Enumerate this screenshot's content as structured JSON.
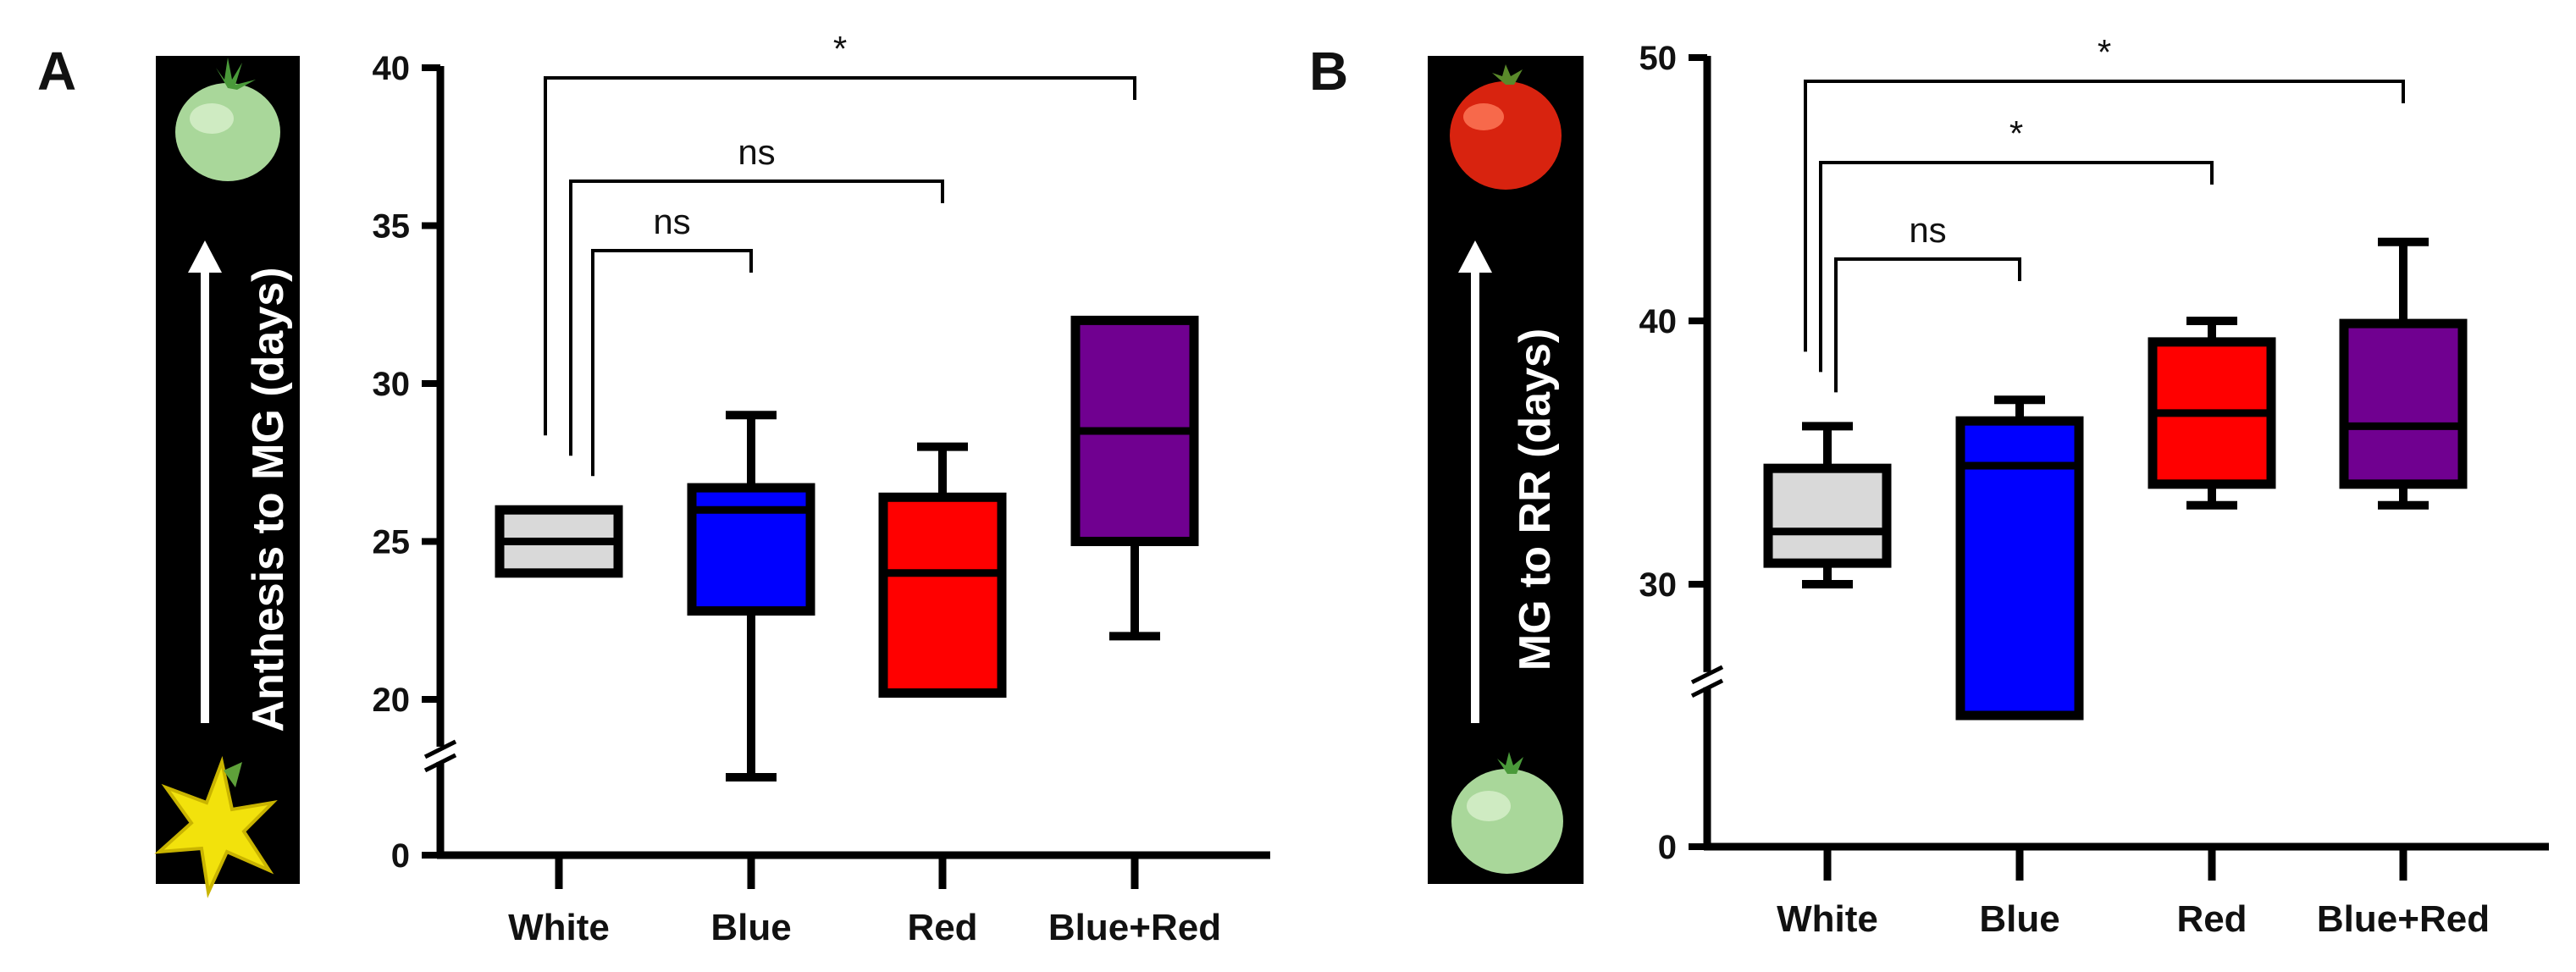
{
  "chart_data": [
    {
      "panel": "A",
      "type": "box",
      "ylabel": "Anthesis to MG (days)",
      "categories": [
        "White",
        "Blue",
        "Red",
        "Blue+Red"
      ],
      "y_ticks": [
        0,
        20,
        25,
        30,
        35,
        40
      ],
      "axis_break": [
        0,
        20
      ],
      "ylim": [
        0,
        40
      ],
      "boxes": [
        {
          "category": "White",
          "min": 24,
          "q1": 24,
          "median": 25,
          "q3": 26,
          "max": 26,
          "color": "#d9d9d9"
        },
        {
          "category": "Blue",
          "min": 19,
          "q1": 22.8,
          "median": 26,
          "q3": 26.7,
          "max": 29,
          "color": "#0000ff"
        },
        {
          "category": "Red",
          "min": 20.2,
          "q1": 20.2,
          "median": 24,
          "q3": 26.4,
          "max": 28,
          "color": "#ff0000"
        },
        {
          "category": "Blue+Red",
          "min": 22,
          "q1": 25,
          "median": 28.5,
          "q3": 32,
          "max": 32,
          "color": "#700090"
        }
      ],
      "comparisons": [
        {
          "from": "White",
          "to": "Blue",
          "label": "ns"
        },
        {
          "from": "White",
          "to": "Red",
          "label": "ns"
        },
        {
          "from": "White",
          "to": "Blue+Red",
          "label": "*"
        }
      ]
    },
    {
      "panel": "B",
      "type": "box",
      "ylabel": "MG to RR (days)",
      "categories": [
        "White",
        "Blue",
        "Red",
        "Blue+Red"
      ],
      "y_ticks": [
        0,
        30,
        40,
        50
      ],
      "axis_break": [
        0,
        25
      ],
      "ylim": [
        0,
        50
      ],
      "boxes": [
        {
          "category": "White",
          "min": 30,
          "q1": 30.8,
          "median": 32,
          "q3": 34.4,
          "max": 36,
          "color": "#d9d9d9"
        },
        {
          "category": "Blue",
          "min": 28,
          "q1": 29.6,
          "median": 34.5,
          "q3": 36.2,
          "max": 37,
          "color": "#0000ff"
        },
        {
          "category": "Red",
          "min": 33,
          "q1": 33.8,
          "median": 36.5,
          "q3": 39.2,
          "max": 40,
          "color": "#ff0000"
        },
        {
          "category": "Blue+Red",
          "min": 33,
          "q1": 33.8,
          "median": 36,
          "q3": 39.9,
          "max": 43,
          "color": "#700090"
        }
      ],
      "comparisons": [
        {
          "from": "White",
          "to": "Blue",
          "label": "ns"
        },
        {
          "from": "White",
          "to": "Red",
          "label": "*"
        },
        {
          "from": "White",
          "to": "Blue+Red",
          "label": "*"
        }
      ]
    }
  ]
}
